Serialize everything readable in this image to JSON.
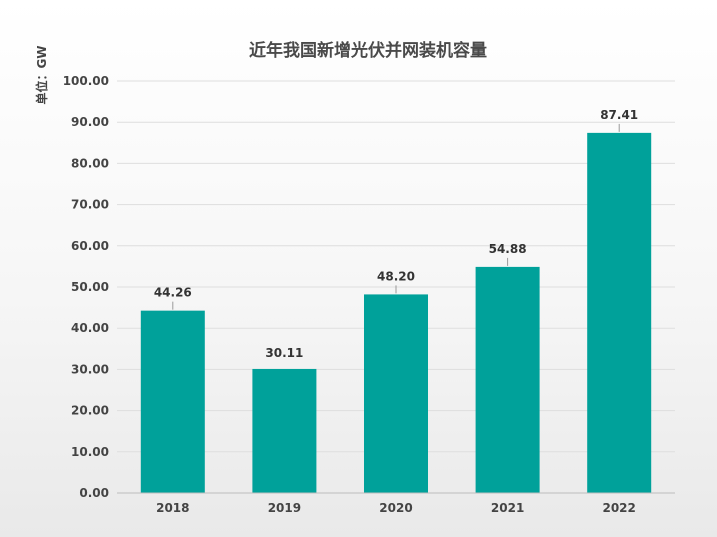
{
  "chart_data": {
    "type": "bar",
    "title": "近年我国新增光伏并网装机容量",
    "ylabel": "单位：GW",
    "xlabel": "",
    "categories": [
      "2018",
      "2019",
      "2020",
      "2021",
      "2022"
    ],
    "values": [
      44.26,
      30.11,
      48.2,
      54.88,
      87.41
    ],
    "value_labels": [
      "44.26",
      "30.11",
      "48.20",
      "54.88",
      "87.41"
    ],
    "ylim": [
      0,
      100
    ],
    "yticks": [
      "0.00",
      "10.00",
      "20.00",
      "30.00",
      "40.00",
      "50.00",
      "60.00",
      "70.00",
      "80.00",
      "90.00",
      "100.00"
    ],
    "bar_color": "#00a19a",
    "grid": true,
    "legend": "none"
  }
}
